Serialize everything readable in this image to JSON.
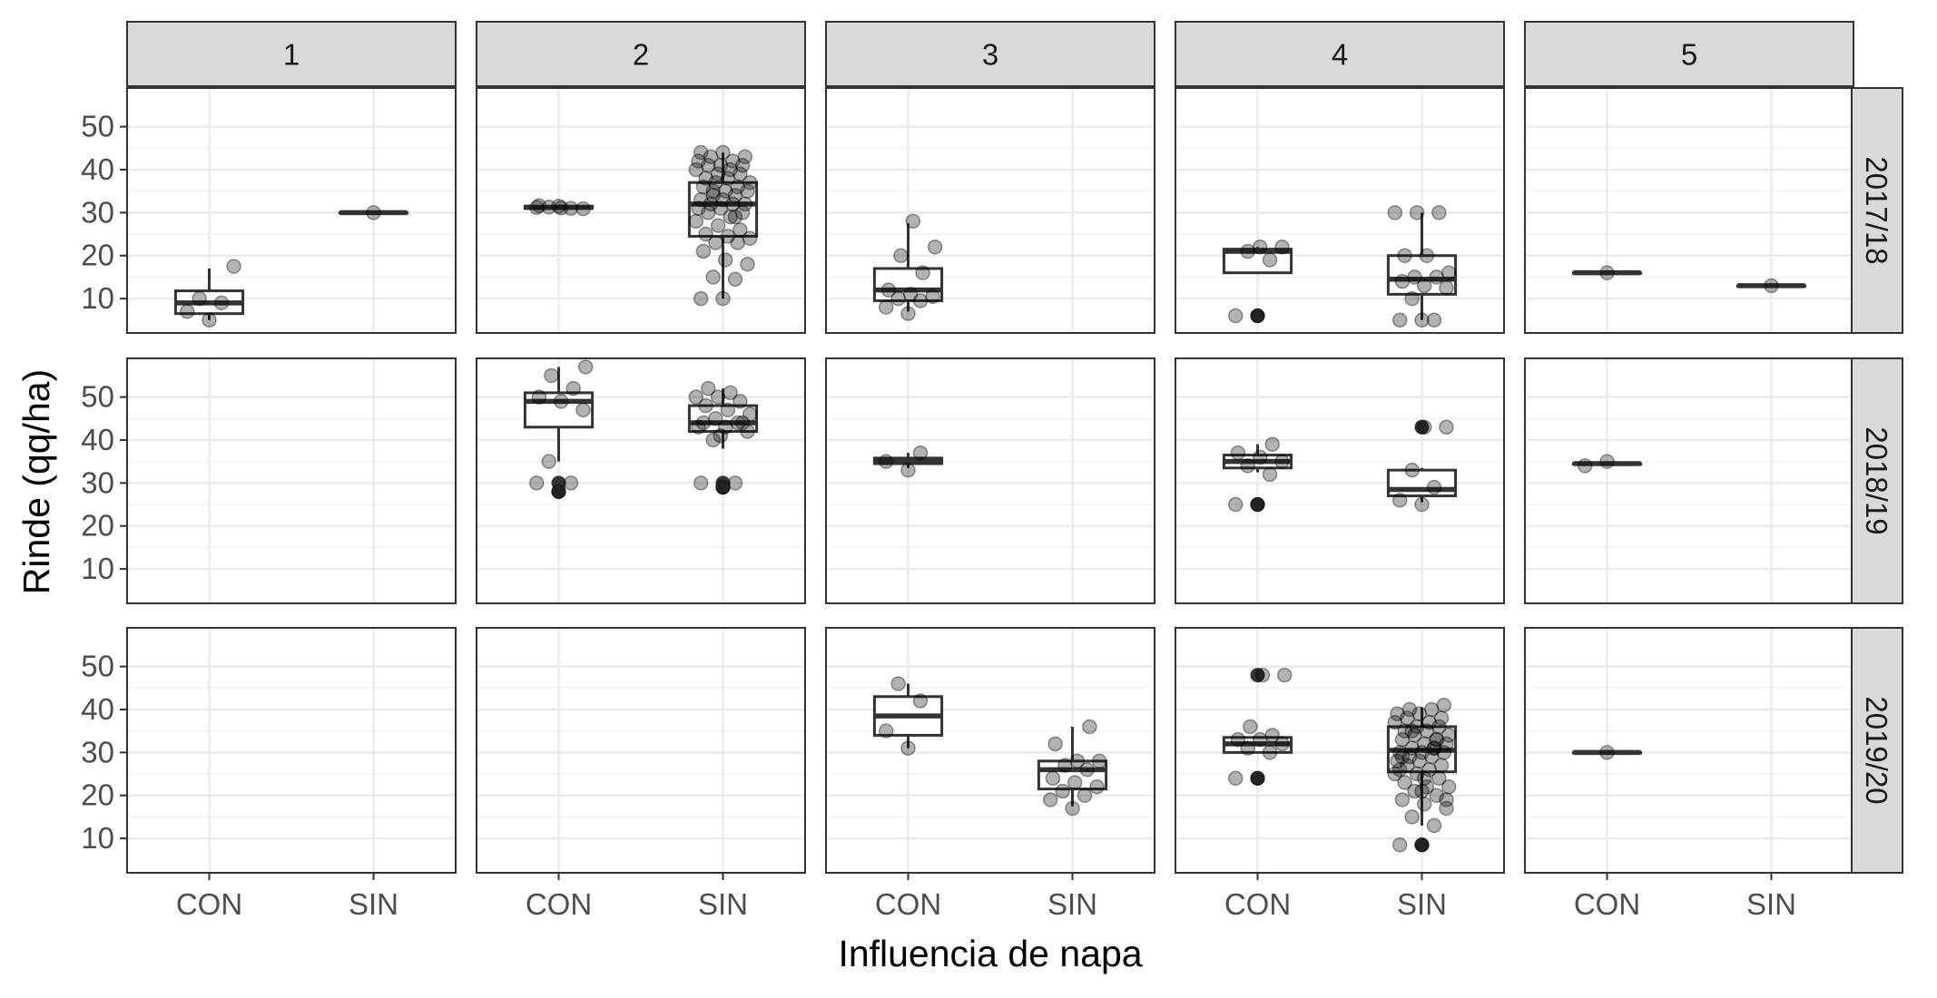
{
  "chart_data": {
    "type": "box",
    "xlabel": "Influencia de napa",
    "ylabel": "Rinde (qq/ha)",
    "columns": [
      "1",
      "2",
      "3",
      "4",
      "5"
    ],
    "rows": [
      "2017/18",
      "2018/19",
      "2019/20"
    ],
    "categories": [
      "CON",
      "SIN"
    ],
    "y_ticks": [
      "10",
      "20",
      "30",
      "40",
      "50"
    ],
    "ylim": [
      2,
      59
    ],
    "grid": true,
    "panels": [
      {
        "row": 0,
        "col": 0,
        "boxes": [
          {
            "x": "CON",
            "stats": [
              5,
              6.5,
              9,
              11.8,
              17
            ],
            "outliers": [],
            "points": [
              5,
              7,
              9,
              10,
              17.5
            ]
          },
          {
            "x": "SIN",
            "stats": [
              30,
              30,
              30,
              30,
              30
            ],
            "outliers": [],
            "points": [
              30
            ]
          }
        ]
      },
      {
        "row": 0,
        "col": 1,
        "boxes": [
          {
            "x": "CON",
            "stats": [
              30.8,
              31,
              31.2,
              31.5,
              31.8
            ],
            "outliers": [],
            "points": [
              31.5,
              31.2,
              31,
              31.3,
              30.9,
              31.1,
              31.6
            ]
          },
          {
            "x": "SIN",
            "stats": [
              10,
              24.5,
              32,
              37,
              44
            ],
            "outliers": [],
            "points": [
              10,
              10,
              14.5,
              15,
              18,
              19,
              21,
              23,
              23,
              24,
              24.5,
              25,
              26,
              27,
              28,
              29,
              30,
              30,
              31,
              31,
              32,
              32,
              32,
              33,
              33,
              34,
              34,
              35,
              35,
              36,
              36,
              37,
              37,
              38,
              38,
              39,
              39,
              40,
              40,
              41,
              41,
              41,
              42,
              42,
              43,
              43,
              44,
              44,
              29,
              35
            ]
          }
        ]
      },
      {
        "row": 0,
        "col": 2,
        "boxes": [
          {
            "x": "CON",
            "stats": [
              7,
              9.5,
              12,
              17,
              27.5
            ],
            "outliers": [],
            "points": [
              6.5,
              8,
              9.5,
              10,
              10.5,
              11,
              12,
              16,
              20,
              22,
              28
            ]
          }
        ]
      },
      {
        "row": 0,
        "col": 3,
        "boxes": [
          {
            "x": "CON",
            "stats": [
              16,
              16,
              21,
              21.5,
              22
            ],
            "outliers": [
              6
            ],
            "points": [
              6,
              6,
              19,
              21,
              22,
              22
            ]
          },
          {
            "x": "SIN",
            "stats": [
              5,
              11,
              14.5,
              20,
              30
            ],
            "outliers": [],
            "points": [
              5,
              5,
              5,
              10,
              12.5,
              13,
              14,
              15,
              15,
              16,
              20,
              20,
              30,
              30,
              30
            ]
          }
        ]
      },
      {
        "row": 0,
        "col": 4,
        "boxes": [
          {
            "x": "CON",
            "stats": [
              16,
              16,
              16,
              16,
              16
            ],
            "outliers": [],
            "points": [
              16
            ]
          },
          {
            "x": "SIN",
            "stats": [
              13,
              13,
              13,
              13,
              13
            ],
            "outliers": [],
            "points": [
              13
            ]
          }
        ]
      },
      {
        "row": 1,
        "col": 1,
        "boxes": [
          {
            "x": "CON",
            "stats": [
              35,
              43,
              49,
              51,
              57
            ],
            "outliers": [
              28,
              30
            ],
            "points": [
              28,
              30,
              30,
              35,
              47,
              49,
              50,
              52,
              55,
              57
            ]
          },
          {
            "x": "SIN",
            "stats": [
              38,
              42,
              44,
              48,
              52
            ],
            "outliers": [
              29,
              30
            ],
            "points": [
              29,
              30,
              30,
              40,
              42,
              43,
              44,
              44,
              45,
              46,
              47,
              48,
              49,
              50,
              50,
              51,
              52,
              44,
              41,
              43
            ]
          }
        ]
      },
      {
        "row": 1,
        "col": 2,
        "boxes": [
          {
            "x": "CON",
            "stats": [
              33.5,
              34.5,
              35,
              35.8,
              37
            ],
            "outliers": [],
            "points": [
              33,
              35,
              37
            ]
          }
        ]
      },
      {
        "row": 1,
        "col": 3,
        "boxes": [
          {
            "x": "CON",
            "stats": [
              32.5,
              33.5,
              35,
              36.5,
              39
            ],
            "outliers": [
              25
            ],
            "points": [
              25,
              25,
              32,
              34,
              35,
              36,
              37,
              39
            ]
          },
          {
            "x": "SIN",
            "stats": [
              25.5,
              27,
              28.5,
              33,
              33.5
            ],
            "outliers": [
              43
            ],
            "points": [
              25,
              26,
              29,
              33,
              43,
              43
            ]
          }
        ]
      },
      {
        "row": 1,
        "col": 4,
        "boxes": [
          {
            "x": "CON",
            "stats": [
              34.5,
              34.5,
              34.5,
              34.5,
              34.5
            ],
            "outliers": [],
            "points": [
              35,
              34
            ]
          }
        ]
      },
      {
        "row": 2,
        "col": 2,
        "boxes": [
          {
            "x": "CON",
            "stats": [
              31,
              34,
              38.5,
              43,
              46
            ],
            "outliers": [],
            "points": [
              31,
              35,
              42,
              46
            ]
          },
          {
            "x": "SIN",
            "stats": [
              17.5,
              21.5,
              26,
              28,
              36
            ],
            "outliers": [],
            "points": [
              17,
              19,
              20,
              21,
              22,
              23,
              24,
              26,
              27,
              28,
              28,
              32,
              36
            ]
          }
        ]
      },
      {
        "row": 2,
        "col": 3,
        "boxes": [
          {
            "x": "CON",
            "stats": [
              30,
              30,
              32,
              33.5,
              33.5
            ],
            "outliers": [
              24,
              48
            ],
            "points": [
              24,
              24,
              30,
              31,
              32,
              33,
              33,
              34,
              36,
              48,
              48
            ]
          },
          {
            "x": "SIN",
            "stats": [
              13,
              25.5,
              30.5,
              36,
              40.5
            ],
            "outliers": [
              8.5
            ],
            "points": [
              8.5,
              8.5,
              13,
              15,
              17,
              18,
              19,
              20,
              21,
              22,
              22,
              23,
              24,
              25,
              25,
              26,
              27,
              27,
              28,
              28,
              29,
              29,
              30,
              30,
              30,
              31,
              31,
              32,
              32,
              33,
              33,
              34,
              34,
              35,
              35,
              36,
              36,
              37,
              37,
              38,
              38,
              39,
              39,
              40,
              40,
              41,
              21,
              26,
              31,
              35,
              19,
              24,
              29,
              33
            ]
          }
        ]
      },
      {
        "row": 2,
        "col": 4,
        "boxes": [
          {
            "x": "CON",
            "stats": [
              30,
              30,
              30,
              30,
              30
            ],
            "outliers": [],
            "points": [
              30
            ]
          }
        ]
      }
    ]
  }
}
